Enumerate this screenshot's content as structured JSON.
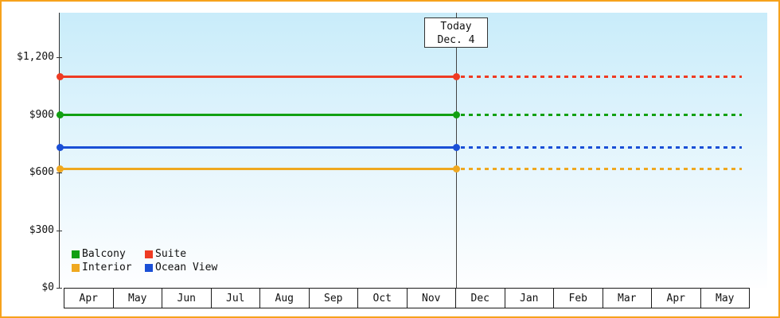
{
  "chart_data": {
    "type": "line",
    "title": "",
    "description": "Cabin price history by category; solid lines up to today, dotted projection after",
    "x_categories": [
      "Apr",
      "May",
      "Jun",
      "Jul",
      "Aug",
      "Sep",
      "Oct",
      "Nov",
      "Dec",
      "Jan",
      "Feb",
      "Mar",
      "Apr",
      "May"
    ],
    "y_ticks": [
      {
        "label": "$1,200",
        "value": 1200
      },
      {
        "label": "$900",
        "value": 900
      },
      {
        "label": "$600",
        "value": 600
      },
      {
        "label": "$300",
        "value": 300
      },
      {
        "label": "$0",
        "value": 0
      }
    ],
    "ylim": [
      0,
      1300
    ],
    "grid": false,
    "series": [
      {
        "name": "Suite",
        "value": 1100,
        "color": "#ee3b23"
      },
      {
        "name": "Balcony",
        "value": 900,
        "color": "#12a012"
      },
      {
        "name": "Ocean View",
        "value": 730,
        "color": "#1a4fd6"
      },
      {
        "name": "Interior",
        "value": 620,
        "color": "#efa820"
      }
    ],
    "legend": [
      {
        "name": "Balcony",
        "color": "#12a012"
      },
      {
        "name": "Suite",
        "color": "#ee3b23"
      },
      {
        "name": "Interior",
        "color": "#efa820"
      },
      {
        "name": "Ocean View",
        "color": "#1a4fd6"
      }
    ],
    "legend_position": "bottom-left",
    "today": {
      "line1": "Today",
      "line2": "Dec. 4",
      "x_category": "Dec"
    }
  },
  "colors": {
    "frame_border": "#f6a21c",
    "plot_gradient_top": "#c9ecfa",
    "plot_gradient_bottom": "#fefeff",
    "axis": "#333333"
  }
}
